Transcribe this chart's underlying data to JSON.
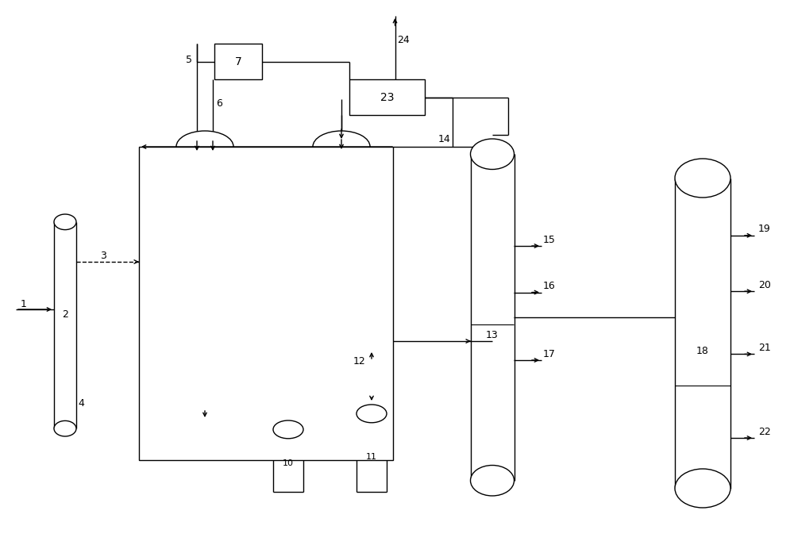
{
  "line_color": "#000000",
  "fig_width": 10.0,
  "fig_height": 6.87,
  "dpi": 100,
  "lw": 1.0
}
